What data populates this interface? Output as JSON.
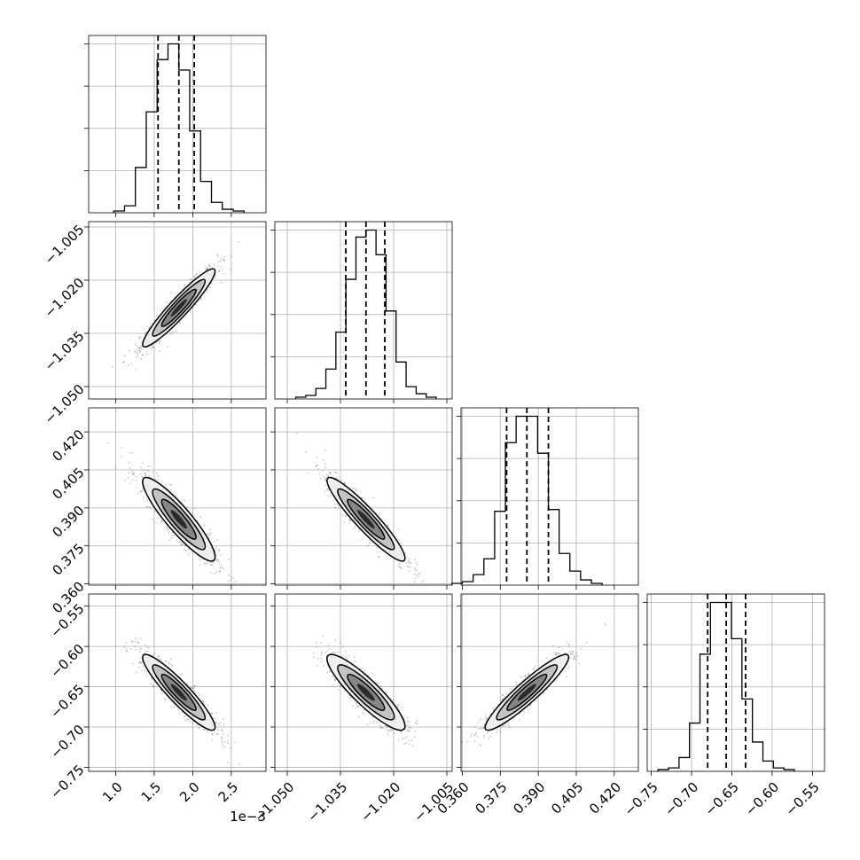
{
  "chart_data": {
    "type": "scatter",
    "title": "",
    "variables": [
      {
        "labels": [
          "1.0",
          "1.5",
          "2.0",
          "2.5"
        ],
        "ticks": [
          1.0,
          1.5,
          2.0,
          2.5
        ],
        "range": [
          0.65,
          2.95
        ],
        "offset_label": "1e−3",
        "quantiles": [
          1.55,
          1.82,
          2.02
        ]
      },
      {
        "labels": [
          "−1.050",
          "−1.035",
          "−1.020",
          "−1.005"
        ],
        "ticks": [
          -1.05,
          -1.035,
          -1.02,
          -1.005
        ],
        "range": [
          -1.0535,
          -1.0035
        ],
        "quantiles": [
          -1.0335,
          -1.0278,
          -1.0225
        ]
      },
      {
        "labels": [
          "0.360",
          "0.375",
          "0.390",
          "0.405",
          "0.420"
        ],
        "ticks": [
          0.36,
          0.375,
          0.39,
          0.405,
          0.42
        ],
        "range": [
          0.3595,
          0.4295
        ],
        "quantiles": [
          0.3775,
          0.3855,
          0.394
        ]
      },
      {
        "labels": [
          "−0.75",
          "−0.70",
          "−0.65",
          "−0.60",
          "−0.55"
        ],
        "ticks": [
          -0.75,
          -0.7,
          -0.65,
          -0.6,
          -0.55
        ],
        "range": [
          -0.755,
          -0.535
        ],
        "quantiles": [
          -0.68,
          -0.657,
          -0.633
        ]
      }
    ],
    "histograms": [
      {
        "counts": [
          1,
          4,
          26,
          58,
          88,
          97,
          82,
          47,
          18,
          6,
          2,
          1
        ]
      },
      {
        "counts": [
          1,
          2,
          6,
          17,
          38,
          68,
          92,
          96,
          82,
          50,
          21,
          7,
          3,
          1
        ]
      },
      {
        "counts": [
          1,
          2,
          6,
          15,
          42,
          81,
          96,
          96,
          75,
          43,
          18,
          8,
          3,
          1
        ]
      },
      {
        "counts": [
          1,
          2,
          8,
          28,
          68,
          98,
          98,
          77,
          42,
          17,
          6,
          2,
          1
        ]
      }
    ],
    "correlations": {
      "1-0": 0.94,
      "2-0": -0.9,
      "2-1": -0.93,
      "3-0": -0.92,
      "3-1": -0.89,
      "3-2": 0.93
    },
    "grid": true,
    "contours": "filled, 3 levels",
    "colors": {
      "points": "#000000",
      "line": "#000000",
      "grid": "#b0b0b0",
      "fill_outer": "#f0f0f0",
      "fill_mid": "#bfbfbf",
      "fill_inner": "#808080",
      "fill_core": "#1a1a1a"
    }
  }
}
